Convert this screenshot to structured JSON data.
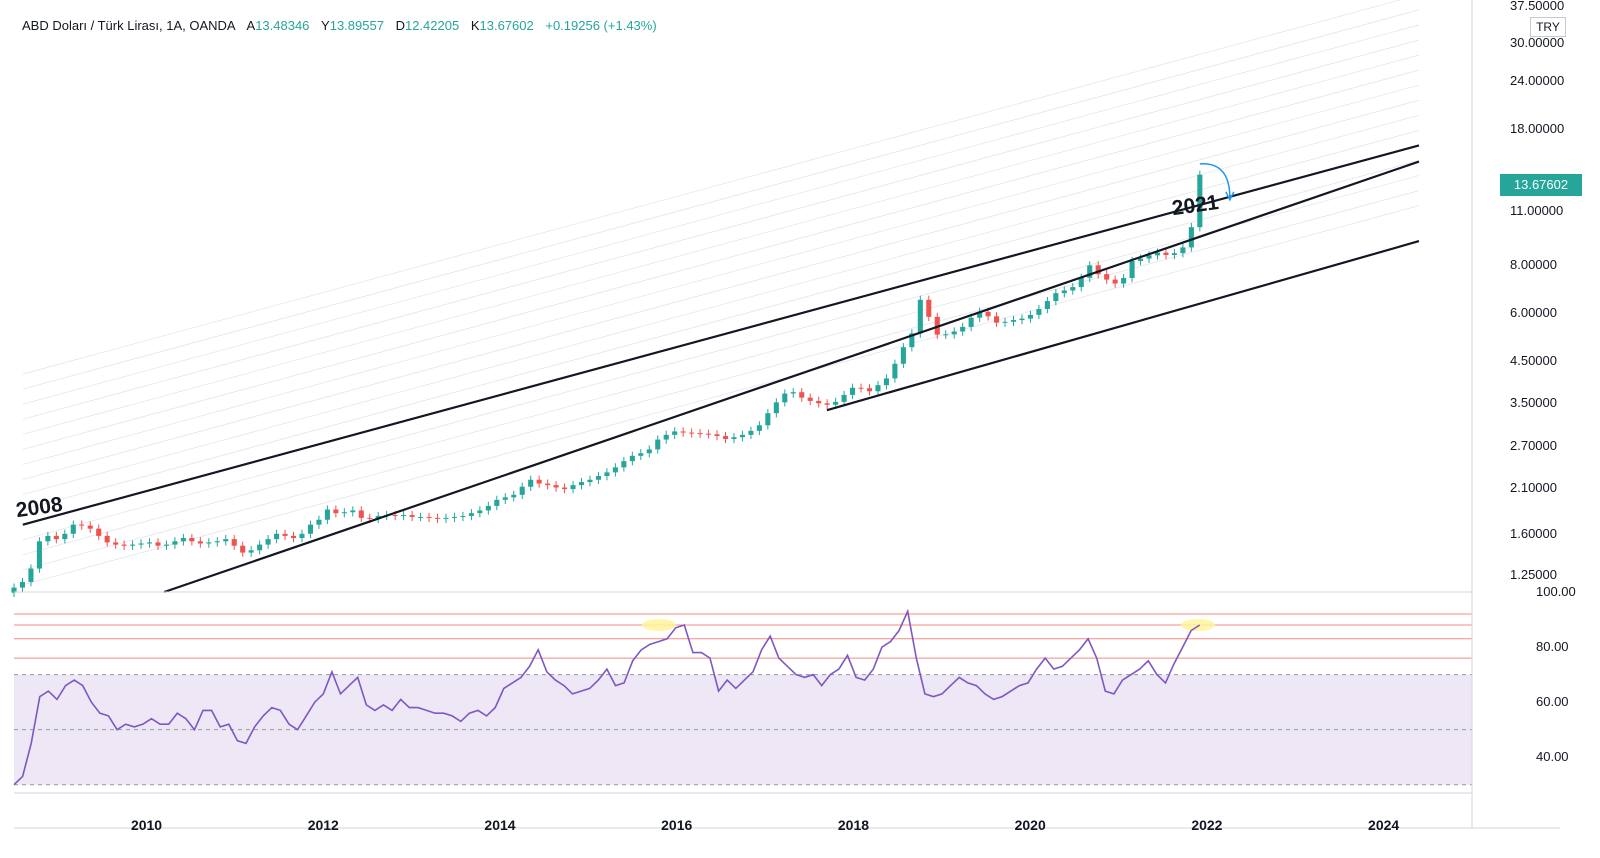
{
  "header": {
    "symbol": "ABD Doları / Türk Lirası, 1A, OANDA",
    "open_label": "A",
    "open": "13.48346",
    "high_label": "Y",
    "high": "13.89557",
    "low_label": "D",
    "low": "12.42205",
    "close_label": "K",
    "close": "13.67602",
    "change": "+0.19256 (+1.43%)"
  },
  "currency": "TRY",
  "current_price_label": "13.67602",
  "annotations": {
    "start": "2008",
    "end": "2021"
  },
  "colors": {
    "up": "#26a69a",
    "down": "#ef5350",
    "rsi": "#7e57c2",
    "rsi_band": "#ede7f6",
    "hline": "#f28b82",
    "highlight": "#fff59d"
  },
  "chart_data": [
    {
      "type": "candlestick",
      "scale": "log",
      "x_range": [
        2008.5,
        2025.0
      ],
      "y_range": [
        1.13,
        37.5
      ],
      "price_ticks": [
        "37.50000",
        "30.00000",
        "24.00000",
        "18.00000",
        "13.67602",
        "11.00000",
        "8.00000",
        "6.00000",
        "4.50000",
        "3.50000",
        "2.70000",
        "2.10000",
        "1.60000",
        "1.25000"
      ],
      "x_ticks": [
        "2010",
        "2012",
        "2014",
        "2016",
        "2018",
        "2020",
        "2022",
        "2024"
      ],
      "trendlines": [
        {
          "from": [
            2008.6,
            1.69
          ],
          "to": [
            2024.4,
            16.3
          ]
        },
        {
          "from": [
            2010.2,
            1.13
          ],
          "to": [
            2024.4,
            14.8
          ]
        },
        {
          "from": [
            2017.7,
            3.35
          ],
          "to": [
            2024.4,
            9.2
          ]
        }
      ],
      "series": [
        {
          "close": [
            1.16,
            1.2,
            1.3,
            1.53,
            1.58,
            1.55,
            1.6,
            1.69,
            1.68,
            1.65,
            1.58,
            1.52,
            1.5,
            1.49,
            1.5,
            1.51,
            1.52,
            1.49,
            1.5,
            1.53,
            1.56,
            1.53,
            1.51,
            1.52,
            1.53,
            1.55,
            1.49,
            1.43,
            1.45,
            1.5,
            1.55,
            1.6,
            1.58,
            1.56,
            1.6,
            1.69,
            1.74,
            1.85,
            1.81,
            1.82,
            1.84,
            1.76,
            1.75,
            1.78,
            1.79,
            1.78,
            1.79,
            1.77,
            1.77,
            1.76,
            1.75,
            1.76,
            1.77,
            1.78,
            1.81,
            1.84,
            1.89,
            1.96,
            1.99,
            2.02,
            2.12,
            2.21,
            2.16,
            2.14,
            2.11,
            2.09,
            2.14,
            2.18,
            2.21,
            2.26,
            2.31,
            2.38,
            2.47,
            2.55,
            2.59,
            2.65,
            2.81,
            2.89,
            2.95,
            2.93,
            2.92,
            2.91,
            2.9,
            2.87,
            2.82,
            2.85,
            2.89,
            2.96,
            3.06,
            3.29,
            3.51,
            3.7,
            3.73,
            3.61,
            3.54,
            3.49,
            3.46,
            3.52,
            3.67,
            3.83,
            3.82,
            3.75,
            3.89,
            4.05,
            4.42,
            4.88,
            5.3,
            6.48,
            5.85,
            5.26,
            5.27,
            5.36,
            5.51,
            5.82,
            6.03,
            5.87,
            5.65,
            5.68,
            5.74,
            5.79,
            5.92,
            6.13,
            6.43,
            6.74,
            6.85,
            6.99,
            7.39,
            7.96,
            7.55,
            7.31,
            7.14,
            7.38,
            8.17,
            8.29,
            8.45,
            8.59,
            8.47,
            8.56,
            8.86,
            10.0,
            13.68
          ],
          "high_low_note": "monthly candles 2008-2021"
        }
      ]
    },
    {
      "type": "line",
      "name": "RSI",
      "y_range": [
        27,
        100
      ],
      "y_ticks": [
        "100.00",
        "80.00",
        "60.00",
        "40.00"
      ],
      "levels": [
        70,
        50,
        30
      ],
      "hlines": [
        92,
        88,
        83,
        76
      ],
      "highlights": [
        [
          2015.8,
          88
        ],
        [
          2021.9,
          88
        ]
      ],
      "values": [
        30,
        33,
        45,
        62,
        64,
        61,
        66,
        68,
        66,
        60,
        56,
        55,
        50,
        52,
        51,
        52,
        54,
        52,
        52,
        56,
        54,
        50,
        57,
        57,
        51,
        52,
        46,
        45,
        51,
        55,
        58,
        57,
        52,
        50,
        55,
        60,
        63,
        71,
        63,
        66,
        69,
        59,
        57,
        59,
        57,
        61,
        58,
        58,
        57,
        56,
        56,
        55,
        53,
        56,
        57,
        55,
        58,
        65,
        67,
        69,
        73,
        79,
        71,
        68,
        66,
        63,
        64,
        65,
        68,
        72,
        66,
        67,
        75,
        79,
        81,
        82,
        83,
        87,
        88,
        78,
        78,
        76,
        64,
        68,
        65,
        68,
        71,
        79,
        84,
        76,
        73,
        70,
        69,
        70,
        66,
        70,
        72,
        77,
        69,
        68,
        72,
        80,
        82,
        86,
        93,
        76,
        63,
        62,
        63,
        66,
        69,
        67,
        66,
        63,
        61,
        62,
        64,
        66,
        67,
        72,
        76,
        72,
        73,
        76,
        79,
        83,
        76,
        64,
        63,
        68,
        70,
        72,
        75,
        70,
        67,
        74,
        80,
        86,
        88
      ]
    }
  ]
}
